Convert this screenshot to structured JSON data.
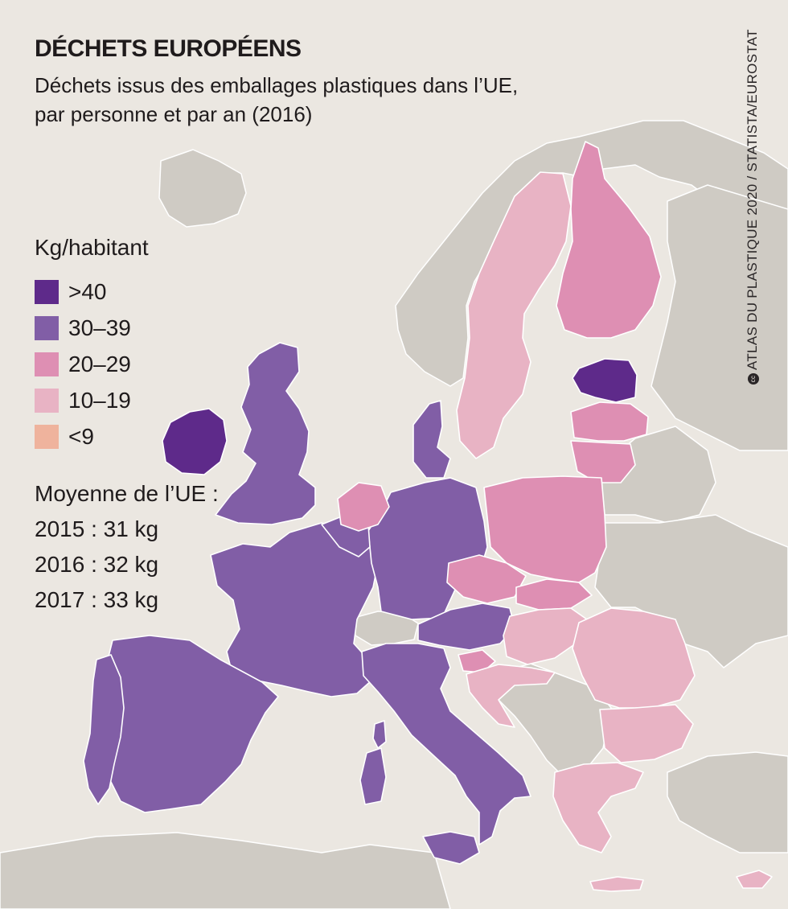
{
  "title": "DÉCHETS EUROPÉENS",
  "subtitle_line1": "Déchets issus des emballages plastiques dans l’UE,",
  "subtitle_line2": "par personne et par an (2016)",
  "legend": {
    "title": "Kg/habitant",
    "items": [
      {
        "label": ">40",
        "color": "#5e2a8a"
      },
      {
        "label": "30–39",
        "color": "#815ea6"
      },
      {
        "label": "20–29",
        "color": "#de8fb3"
      },
      {
        "label": "10–19",
        "color": "#e8b3c4"
      },
      {
        "label": "<9",
        "color": "#efb39d"
      }
    ]
  },
  "averages": {
    "title": "Moyenne de l’UE :",
    "lines": [
      "2015 : 31 kg",
      "2016 : 32 kg",
      "2017 : 33 kg"
    ]
  },
  "credit": "ATLAS DU PLASTIQUE 2020 / STATISTA/EUROSTAT",
  "colors": {
    "background": "#ebe7e1",
    "non_eu_land": "#cfcbc4",
    "border": "#ffffff"
  },
  "countries": [
    {
      "name": "Ireland",
      "category": ">40"
    },
    {
      "name": "Estonia",
      "category": ">40"
    },
    {
      "name": "United Kingdom",
      "category": "30–39"
    },
    {
      "name": "France",
      "category": "30–39"
    },
    {
      "name": "Spain",
      "category": "30–39"
    },
    {
      "name": "Portugal",
      "category": "30–39"
    },
    {
      "name": "Italy",
      "category": "30–39"
    },
    {
      "name": "Germany",
      "category": "30–39"
    },
    {
      "name": "Denmark",
      "category": "30–39"
    },
    {
      "name": "Austria",
      "category": "30–39"
    },
    {
      "name": "Belgium",
      "category": "30–39"
    },
    {
      "name": "Luxembourg",
      "category": ">40"
    },
    {
      "name": "Netherlands",
      "category": "20–29"
    },
    {
      "name": "Finland",
      "category": "20–29"
    },
    {
      "name": "Latvia",
      "category": "20–29"
    },
    {
      "name": "Lithuania",
      "category": "20–29"
    },
    {
      "name": "Poland",
      "category": "20–29"
    },
    {
      "name": "Czechia",
      "category": "20–29"
    },
    {
      "name": "Slovakia",
      "category": "20–29"
    },
    {
      "name": "Slovenia",
      "category": "20–29"
    },
    {
      "name": "Sweden",
      "category": "10–19"
    },
    {
      "name": "Hungary",
      "category": "10–19"
    },
    {
      "name": "Romania",
      "category": "10–19"
    },
    {
      "name": "Bulgaria",
      "category": "10–19"
    },
    {
      "name": "Greece",
      "category": "10–19"
    },
    {
      "name": "Croatia",
      "category": "10–19"
    },
    {
      "name": "Cyprus",
      "category": "10–19"
    }
  ]
}
